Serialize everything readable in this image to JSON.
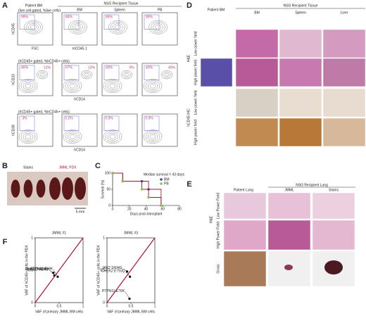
{
  "panel_labels": [
    "A",
    "B",
    "C",
    "D",
    "E",
    "F"
  ],
  "flow": {
    "patient_header": "Patient BM",
    "recipient_header": "NSG Recipient Tissue",
    "tissues": [
      "BM",
      "Spleen",
      "PB"
    ],
    "rows": [
      {
        "gate": "(live cell-gated, %live cells)",
        "y_label": "hCD45",
        "x_labels": [
          "FSC",
          "mCD45.1"
        ],
        "percents": [
          [
            "99%"
          ],
          [
            "84%"
          ],
          [
            "86%"
          ],
          [
            "85%"
          ]
        ]
      },
      {
        "gate": "(hCD45+ gated, %hCD45+ cells)",
        "y_label": "hCD33",
        "x_labels": [
          "hCD14"
        ],
        "percents": [
          [
            "46%",
            "12%"
          ],
          [
            "67%",
            "13%"
          ],
          [
            "60%",
            "9%"
          ],
          [
            "43%",
            "40%"
          ]
        ]
      },
      {
        "gate": "(hCD45+ gated, %hCD45+ cells)",
        "y_label": "hCD38",
        "x_labels": [
          "hCD14"
        ],
        "percents": [
          [
            "3%"
          ],
          [
            "0.2%"
          ],
          [
            "0.5%"
          ],
          [
            "0.5%"
          ]
        ]
      }
    ]
  },
  "spleen": {
    "stains": "Stains",
    "pdx": "JMML PDX",
    "scale": "5 mm"
  },
  "histology_d": {
    "patient": "Patient BM",
    "recipient": "NSG Recipient Tissue",
    "tissues": [
      "BM",
      "Spleen",
      "Liver"
    ],
    "groups": [
      "H&E",
      "hCD45 IHC"
    ],
    "fields": [
      "Low power field",
      "High power field"
    ]
  },
  "histology_e": {
    "patient": "Patient Lung",
    "recipient": "NSG Recipient Lung",
    "columns": [
      "JMML",
      "Stains"
    ],
    "group": "H&E",
    "fields": [
      "Low Power Field",
      "High Power Field"
    ],
    "gross": "Gross"
  },
  "chart_data": [
    {
      "type": "line",
      "step": true,
      "ylabel": "Survival (%)",
      "xlabel": "Days post-transplant",
      "annotation": "Median survival = 43 days",
      "x": [
        0,
        12,
        35,
        43,
        58
      ],
      "xlim": [
        0,
        80
      ],
      "xticks": [
        0,
        20,
        40,
        60,
        80
      ],
      "ylim": [
        0,
        100
      ],
      "yticks": [
        0,
        50,
        100
      ],
      "series": [
        {
          "name": "BM",
          "color": "#3b4ea0",
          "values": [
            100,
            75,
            75,
            50,
            0
          ]
        },
        {
          "name": "PB",
          "color": "#8fc04a",
          "values": [
            100,
            75,
            50,
            25,
            0
          ]
        }
      ]
    },
    {
      "type": "scatter",
      "title": "JMML #1",
      "xlabel": "VAF of primary JMML BM cells",
      "ylabel": "VAF of hCD45+ cells in the PDX",
      "xlim": [
        0,
        1
      ],
      "ylim": [
        0,
        1
      ],
      "xticks": [
        0,
        0.5,
        1
      ],
      "yticks": [
        0,
        0.5,
        1
      ],
      "line_color": "#b0102a",
      "x": [
        0.38,
        0.4,
        0.47
      ],
      "values": [
        0.46,
        0.42,
        0.4
      ],
      "labels": [
        "DHX32 H414fs",
        "DHX32 W241*",
        "PTPN11 E69K"
      ]
    },
    {
      "type": "scatter",
      "title": "JMML #3",
      "xlabel": "VAF of primary JMML BM cells",
      "ylabel": "VAF of hCD45+ cells in the PDX",
      "xlim": [
        0,
        1
      ],
      "ylim": [
        0,
        1
      ],
      "xticks": [
        0,
        0.5,
        1
      ],
      "yticks": [
        0,
        0.5,
        1
      ],
      "line_color": "#b0102a",
      "x": [
        0.42,
        0.48,
        0.47
      ],
      "values": [
        0.48,
        0.4,
        0.06
      ],
      "labels": [
        "JAK2 S604G",
        "CHEK2 E793Q",
        "PTPN11 E76K"
      ]
    }
  ]
}
